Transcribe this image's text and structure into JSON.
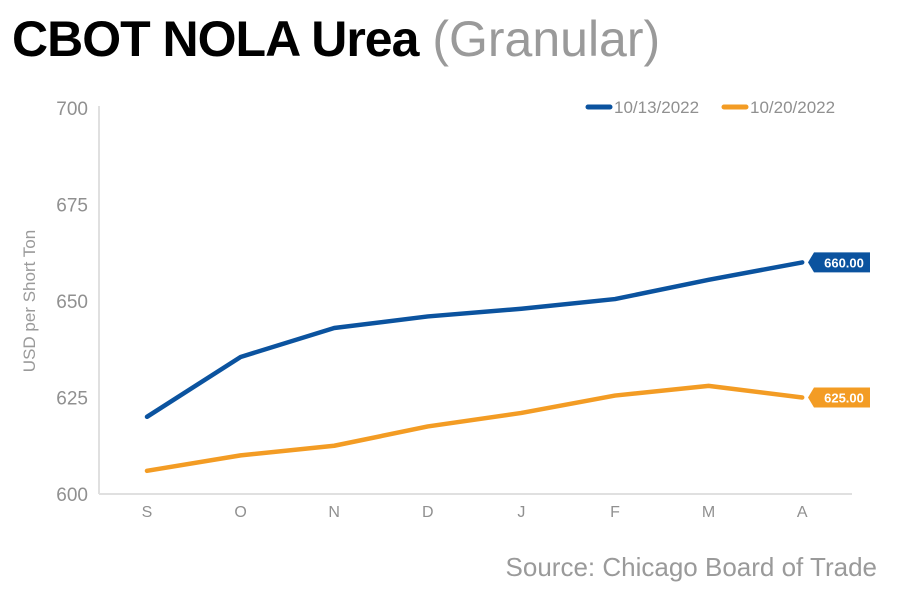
{
  "title": {
    "bold": "CBOT NOLA Urea",
    "light": "(Granular)"
  },
  "source": "Source: Chicago Board of Trade",
  "colors": {
    "series1": "#0b539f",
    "series2": "#f39c24",
    "axis": "#e0e0e0",
    "text": "#909090"
  },
  "chart_data": {
    "type": "line",
    "title": "CBOT NOLA Urea (Granular)",
    "xlabel": "",
    "ylabel": "USD per Short Ton",
    "categories": [
      "S",
      "O",
      "N",
      "D",
      "J",
      "F",
      "M",
      "A"
    ],
    "yticks": [
      "600",
      "625",
      "650",
      "675",
      "700"
    ],
    "ylim": [
      600,
      700
    ],
    "grid": false,
    "legend_position": "top-right",
    "series": [
      {
        "name": "10/13/2022",
        "color": "#0b539f",
        "values": [
          620,
          635.5,
          643,
          646,
          648,
          650.5,
          655.5,
          660
        ],
        "end_label": "660.00"
      },
      {
        "name": "10/20/2022",
        "color": "#f39c24",
        "values": [
          606,
          610,
          612.5,
          617.5,
          621,
          625.5,
          628,
          625
        ],
        "end_label": "625.00"
      }
    ]
  }
}
